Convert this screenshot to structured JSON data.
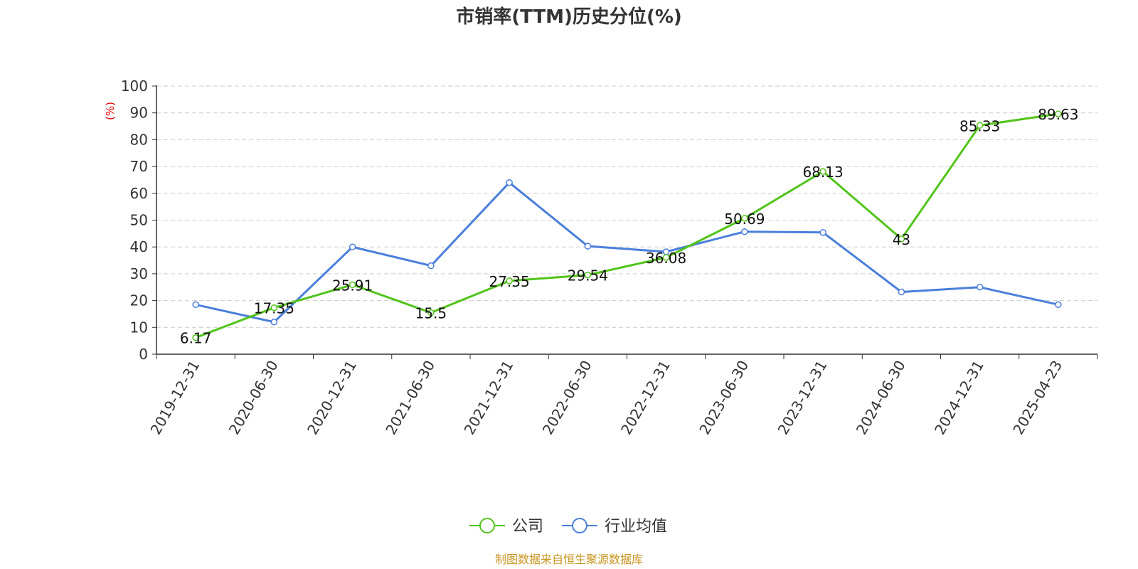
{
  "chart_data": {
    "type": "line",
    "title": "市销率(TTM)历史分位(%)",
    "ylabel": "(%)",
    "ylim": [
      0,
      100
    ],
    "yticks": [
      0,
      10,
      20,
      30,
      40,
      50,
      60,
      70,
      80,
      90,
      100
    ],
    "grid": true,
    "legend_position": "bottom",
    "categories": [
      "2019-12-31",
      "2020-06-30",
      "2020-12-31",
      "2021-06-30",
      "2021-12-31",
      "2022-06-30",
      "2022-12-31",
      "2023-06-30",
      "2023-12-31",
      "2024-06-30",
      "2024-12-31",
      "2025-04-23"
    ],
    "series": [
      {
        "name": "公司",
        "color": "#52c41a",
        "values": [
          6.17,
          17.35,
          25.91,
          15.5,
          27.35,
          29.54,
          36.08,
          50.69,
          68.13,
          43,
          85.33,
          89.63
        ],
        "labels": [
          "6.17",
          "17.35",
          "25.91",
          "15.5",
          "27.35",
          "29.54",
          "36.08",
          "50.69",
          "68.13",
          "43",
          "85.33",
          "89.63"
        ]
      },
      {
        "name": "行业均值",
        "color": "#4a7fdc",
        "values": [
          18.5,
          12.0,
          40.0,
          33.0,
          64.0,
          40.3,
          38.2,
          45.7,
          45.4,
          23.2,
          25.0,
          18.5
        ]
      }
    ]
  },
  "source": "制图数据来自恒生聚源数据库"
}
